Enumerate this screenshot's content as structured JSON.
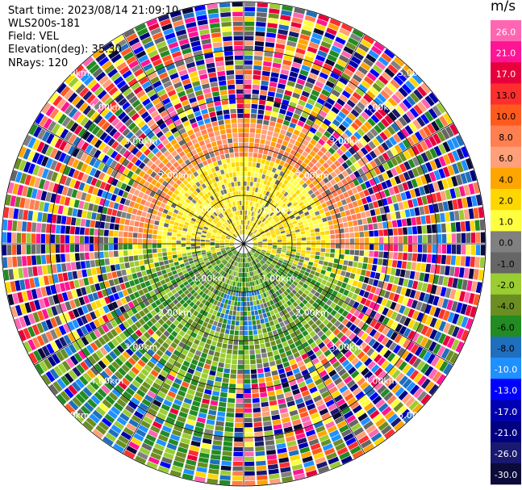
{
  "info": {
    "start_time": "Start time: 2023/08/14 21:09:10",
    "instrument": "WLS200s-181",
    "field": "Field: VEL",
    "elevation": "Elevation(deg): 35.30",
    "nrays": "NRays: 120"
  },
  "chart_data": {
    "type": "heatmap",
    "projection": "polar (PPI)",
    "field": "VEL",
    "units": "m/s",
    "n_rays": 120,
    "range_rings_labels": [
      "1.00km",
      "2.00km",
      "3.00km",
      "4.00km",
      "5.00km"
    ],
    "colorbar": {
      "label": "m/s",
      "ticks": [
        "26.0",
        "21.0",
        "17.0",
        "13.0",
        "10.0",
        "8.0",
        "6.0",
        "4.0",
        "2.0",
        "1.0",
        "0.0",
        "-1.0",
        "-2.0",
        "-4.0",
        "-6.0",
        "-8.0",
        "-10.0",
        "-13.0",
        "-17.0",
        "-21.0",
        "-26.0",
        "-30.0"
      ],
      "colors": [
        "#ff66b2",
        "#ff1493",
        "#e8003c",
        "#ff2e2e",
        "#ff5a1e",
        "#ff7f50",
        "#ffa07a",
        "#ffa500",
        "#ffd700",
        "#ffff40",
        "#808080",
        "#666666",
        "#9acd32",
        "#6b8e23",
        "#228b22",
        "#1f6fbf",
        "#1e90ff",
        "#0000ff",
        "#0000b0",
        "#000080",
        "#191970",
        "#0b0b3a"
      ]
    },
    "colors": {
      "ring": "#000000",
      "label": "#ffffff"
    }
  }
}
